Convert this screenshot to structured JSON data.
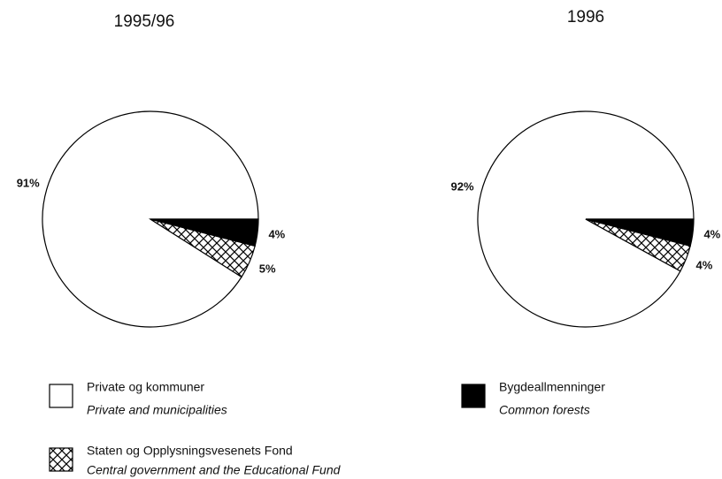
{
  "chart_data": [
    {
      "type": "pie",
      "title": "1995/96",
      "values": [
        91,
        5,
        4
      ],
      "value_labels": [
        "91%",
        "5%",
        "4%"
      ],
      "colors": [
        "#ffffff",
        "hatch",
        "#000000"
      ]
    },
    {
      "type": "pie",
      "title": "1996",
      "values": [
        92,
        4,
        4
      ],
      "value_labels": [
        "92%",
        "4%",
        "4%"
      ],
      "colors": [
        "#ffffff",
        "hatch",
        "#000000"
      ]
    }
  ],
  "legend": [
    {
      "label": "Private og kommuner",
      "translation": "Private and municipalities",
      "color": "#ffffff"
    },
    {
      "label": "Bygdeallmenninger",
      "translation": "Common forests",
      "color": "#000000"
    },
    {
      "label": "Staten og Opplysningsvesenets Fond",
      "translation": "Central government and the Educational Fund",
      "color": "hatch"
    }
  ]
}
